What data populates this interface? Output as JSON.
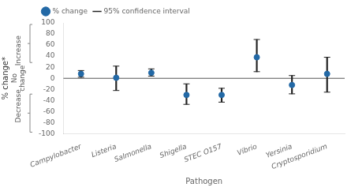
{
  "chart_data": {
    "type": "scatter",
    "xlabel": "Pathogen",
    "ylabel": "% change*",
    "categories": [
      "Campylobacter",
      "Listeria",
      "Salmonella",
      "Shigella",
      "STEC O157",
      "Vibrio",
      "Yersinia",
      "Cryptosporidium"
    ],
    "series": [
      {
        "name": "% change",
        "color": "#2369a6",
        "marker": "o",
        "values": [
          8,
          1,
          10,
          -30,
          -30,
          38,
          -12,
          8
        ]
      },
      {
        "name": "95% confidence interval",
        "color": "#222222",
        "type": "errorbar",
        "lower": [
          2,
          -22,
          4,
          -47,
          -43,
          12,
          -28,
          -25
        ],
        "upper": [
          14,
          22,
          17,
          -10,
          -18,
          70,
          5,
          38
        ]
      }
    ],
    "hlines": [
      {
        "y": 0,
        "color": "#555555"
      }
    ],
    "annotations": [
      "Increase",
      "No\nchange",
      "Decrease"
    ],
    "ylim": [
      -100,
      100
    ],
    "yticks": [
      -100,
      -80,
      -60,
      -40,
      -20,
      0,
      20,
      40,
      60,
      80,
      100
    ],
    "grid": false,
    "legend": "upper left"
  }
}
